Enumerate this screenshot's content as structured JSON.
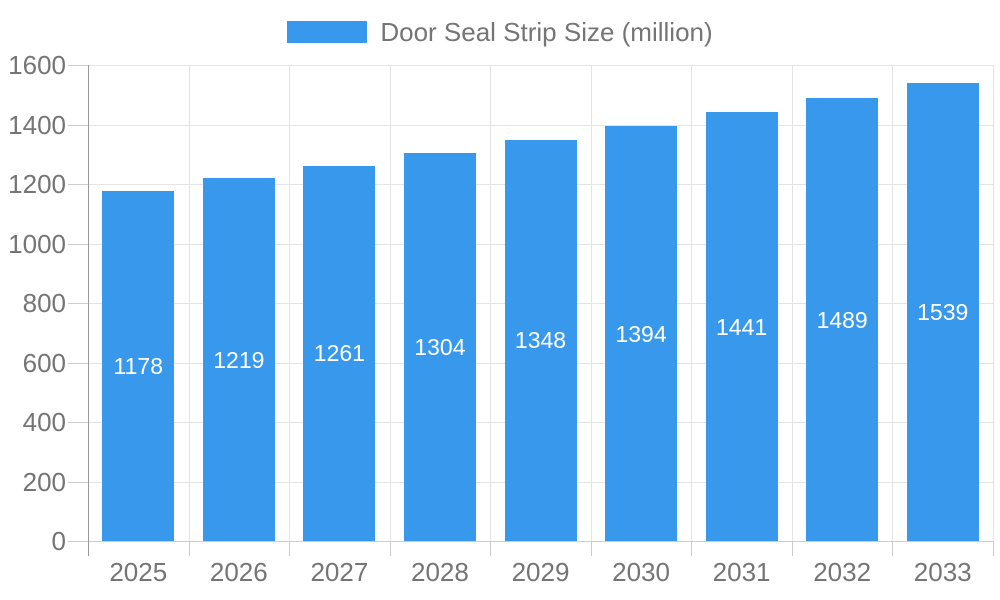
{
  "chart_data": {
    "type": "bar",
    "title": "",
    "categories": [
      "2025",
      "2026",
      "2027",
      "2028",
      "2029",
      "2030",
      "2031",
      "2032",
      "2033"
    ],
    "series": [
      {
        "name": "Door Seal Strip Size (million)",
        "values": [
          1178,
          1219,
          1261,
          1304,
          1348,
          1394,
          1441,
          1489,
          1539
        ]
      }
    ],
    "value_labels": [
      "1178",
      "1219",
      "1261",
      "1304",
      "1348",
      "1394",
      "1441",
      "1489",
      "1539"
    ],
    "xlabel": "",
    "ylabel": "",
    "ylim": [
      0,
      1600
    ],
    "ytick_step": 200,
    "ytick_labels": [
      "0",
      "200",
      "400",
      "600",
      "800",
      "1000",
      "1200",
      "1400",
      "1600"
    ],
    "grid": true,
    "legend_position": "top-center",
    "colors": {
      "bar": "#3898ec",
      "axis_label": "#757575",
      "gridline": "#e4e4e4",
      "tick": "#cccccc",
      "axis_line": "#999999",
      "value_label": "#ffffff",
      "background": "#ffffff"
    }
  }
}
